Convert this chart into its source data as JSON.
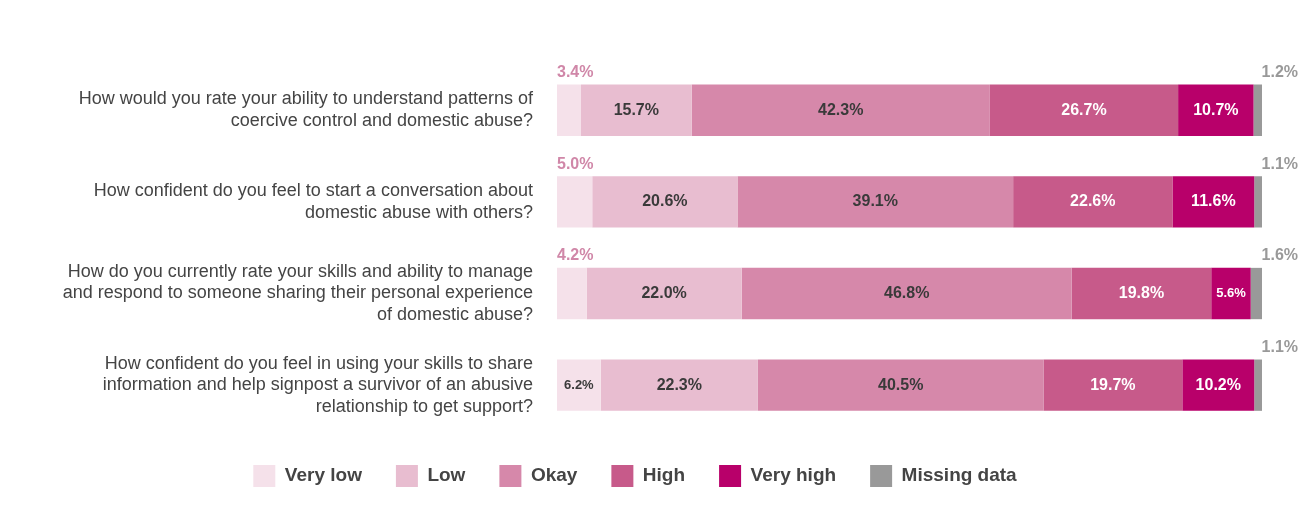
{
  "chart_data": {
    "type": "bar",
    "orientation": "horizontal",
    "stacked": true,
    "legend": "bottom",
    "grid": false,
    "tick_labels": "y",
    "categories": [
      "How would you rate your ability to understand patterns of coercive control and domestic abuse?",
      "How confident do you feel to start a conversation about domestic abuse with others?",
      "How do you currently rate your skills and ability to manage and respond to someone sharing their personal experience of domestic abuse?",
      "How confident do you feel in using your skills to share information and help signpost a survivor of an abusive relationship to get support?"
    ],
    "series": [
      {
        "name": "Very low",
        "color": "#f5e1ea",
        "values": [
          3.4,
          5.0,
          4.2,
          6.2
        ],
        "value_labels": [
          "3.4%",
          "5.0%",
          "4.2%",
          "6.2%"
        ]
      },
      {
        "name": "Low",
        "color": "#e8bdd0",
        "values": [
          15.7,
          20.6,
          22.0,
          22.3
        ],
        "value_labels": [
          "15.7%",
          "20.6%",
          "22.0%",
          "22.3%"
        ]
      },
      {
        "name": "Okay",
        "color": "#d688aa",
        "values": [
          42.3,
          39.1,
          46.8,
          40.5
        ],
        "value_labels": [
          "42.3%",
          "39.1%",
          "46.8%",
          "40.5%"
        ]
      },
      {
        "name": "High",
        "color": "#c75a8a",
        "values": [
          26.7,
          22.6,
          19.8,
          19.7
        ],
        "value_labels": [
          "26.7%",
          "22.6%",
          "19.8%",
          "19.7%"
        ]
      },
      {
        "name": "Very high",
        "color": "#b8006a",
        "values": [
          10.7,
          11.6,
          5.6,
          10.2
        ],
        "value_labels": [
          "10.7%",
          "11.6%",
          "5.6%",
          "10.2%"
        ]
      },
      {
        "name": "Missing data",
        "color": "#999999",
        "values": [
          1.2,
          1.1,
          1.6,
          1.1
        ],
        "value_labels": [
          "1.2%",
          "1.1%",
          "1.6%",
          "1.1%"
        ]
      }
    ]
  }
}
